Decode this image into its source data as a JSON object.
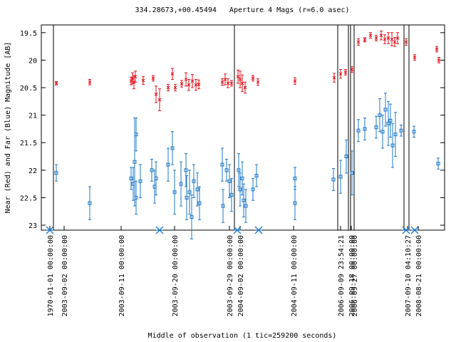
{
  "chart_data": {
    "type": "errorbar",
    "title": "334.28673,+00.45494   Aperture 4 Mags (r=6.0 asec)",
    "ylabel": "Near (Red) and Far (Blue) Magnitude [AB]",
    "xlabel": "Middle of observation (1 tic=259200 seconds)",
    "xlim": [
      0,
      566
    ],
    "ylim": [
      19.36,
      23.09
    ],
    "y_inverted": true,
    "yticks": [
      19.5,
      20,
      20.5,
      21,
      21.5,
      22,
      22.5,
      23
    ],
    "xticks": [
      {
        "value": 12,
        "label": "1970-01-01 00:00:00"
      },
      {
        "value": 32,
        "label": "2003-09-02 00:00:00"
      },
      {
        "value": 112,
        "label": "2003-09-11 00:00:00"
      },
      {
        "value": 187,
        "label": "2003-09-20 00:00:00"
      },
      {
        "value": 264,
        "label": "2003-09-29 00:00:00"
      },
      {
        "value": 279,
        "label": "2004-09-02 00:00:00"
      },
      {
        "value": 354,
        "label": "2004-09-11 00:00:00"
      },
      {
        "value": 420,
        "label": "2006-09-09 23:54:21"
      },
      {
        "value": 435,
        "label": "2006-09-18 00:00:00"
      },
      {
        "value": 439,
        "label": "2006-09-27 00:00:00"
      },
      {
        "value": 514,
        "label": "2007-09-10 04:10:27"
      },
      {
        "value": 529,
        "label": "2008-08-21 00:00:00"
      }
    ],
    "segment_lines": [
      17,
      271,
      416,
      431,
      434,
      439,
      509,
      516
    ],
    "markers_x": [
      12,
      166,
      275,
      305,
      512,
      524
    ],
    "marker_color": "#1e78c8",
    "series": [
      {
        "name": "Near",
        "color": "#e0141e",
        "marker": "x",
        "x": [
          21,
          68,
          126,
          128,
          130,
          132,
          143,
          157,
          161,
          166,
          178,
          184,
          188,
          197,
          203,
          207,
          212,
          217,
          221,
          254,
          258,
          262,
          267,
          276,
          279,
          282,
          286,
          297,
          304,
          356,
          411,
          420,
          427,
          436,
          445,
          454,
          462,
          470,
          477,
          482,
          487,
          492,
          496,
          500,
          512,
          524,
          555,
          558
        ],
        "values": [
          20.42,
          20.4,
          20.38,
          20.33,
          20.4,
          20.3,
          20.37,
          20.33,
          20.62,
          20.72,
          20.5,
          20.25,
          20.5,
          20.43,
          20.35,
          20.45,
          20.38,
          20.45,
          20.44,
          20.4,
          20.35,
          20.42,
          20.42,
          20.3,
          20.35,
          20.42,
          20.5,
          20.33,
          20.4,
          20.38,
          20.32,
          20.25,
          20.22,
          20.17,
          19.67,
          19.63,
          19.55,
          19.6,
          19.55,
          19.62,
          19.6,
          19.62,
          19.67,
          19.6,
          19.67,
          19.95,
          19.8,
          20.0
        ],
        "errors": [
          0.03,
          0.05,
          0.07,
          0.1,
          0.12,
          0.1,
          0.07,
          0.05,
          0.15,
          0.2,
          0.06,
          0.1,
          0.06,
          0.06,
          0.12,
          0.1,
          0.12,
          0.1,
          0.08,
          0.06,
          0.1,
          0.08,
          0.05,
          0.12,
          0.15,
          0.15,
          0.1,
          0.05,
          0.06,
          0.06,
          0.08,
          0.08,
          0.05,
          0.05,
          0.06,
          0.04,
          0.05,
          0.05,
          0.08,
          0.08,
          0.1,
          0.12,
          0.08,
          0.1,
          0.06,
          0.05,
          0.05,
          0.05
        ]
      },
      {
        "name": "Far",
        "color": "#1e78c8",
        "marker": "square",
        "x": [
          21,
          68,
          126,
          129,
          131,
          133,
          133,
          139,
          155,
          159,
          161,
          178,
          184,
          187,
          196,
          203,
          204,
          208,
          211,
          214,
          219,
          222,
          254,
          255,
          260,
          264,
          267,
          277,
          279,
          282,
          284,
          287,
          297,
          302,
          356,
          356,
          410,
          420,
          428,
          436,
          445,
          454,
          470,
          475,
          479,
          483,
          487,
          490,
          493,
          497,
          505,
          523,
          557
        ],
        "values": [
          22.05,
          22.6,
          22.15,
          22.25,
          21.85,
          21.35,
          22.5,
          22.2,
          22.0,
          22.3,
          22.15,
          21.9,
          21.6,
          22.4,
          22.25,
          22.0,
          22.5,
          22.4,
          22.85,
          22.2,
          22.35,
          22.6,
          21.9,
          22.65,
          22.0,
          22.2,
          22.45,
          22.0,
          22.35,
          22.15,
          22.55,
          22.65,
          22.35,
          22.1,
          22.15,
          22.6,
          22.17,
          22.12,
          21.75,
          22.05,
          21.28,
          21.25,
          21.22,
          21.0,
          21.3,
          20.9,
          21.15,
          21.1,
          21.55,
          21.35,
          21.28,
          21.3,
          21.88
        ],
        "errors": [
          0.15,
          0.3,
          0.2,
          0.3,
          0.8,
          0.3,
          0.3,
          0.3,
          0.2,
          0.3,
          0.3,
          0.3,
          0.3,
          0.4,
          0.4,
          0.3,
          0.4,
          0.4,
          0.4,
          0.3,
          0.3,
          0.3,
          0.3,
          0.3,
          0.2,
          0.3,
          0.3,
          0.3,
          0.3,
          0.3,
          0.3,
          0.3,
          0.2,
          0.2,
          0.2,
          0.3,
          0.2,
          0.3,
          0.3,
          0.4,
          0.2,
          0.2,
          0.2,
          0.3,
          0.3,
          0.3,
          0.4,
          0.3,
          0.4,
          0.4,
          0.1,
          0.1,
          0.1
        ]
      }
    ]
  }
}
